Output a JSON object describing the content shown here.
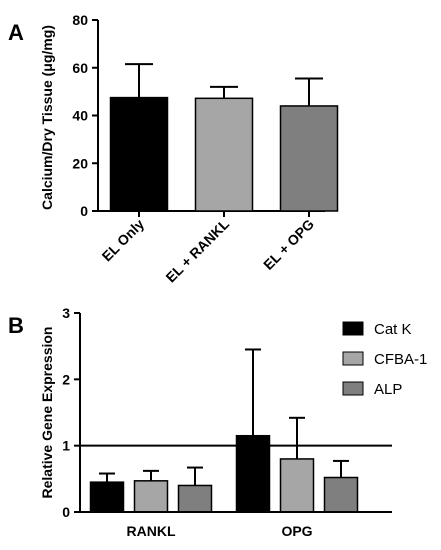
{
  "chart_data": [
    {
      "type": "bar",
      "panel_label": "A",
      "categories": [
        "EL Only",
        "EL + RANKL",
        "EL + OPG"
      ],
      "series": [
        {
          "values": [
            47.5,
            47.2,
            44.0
          ],
          "errors": [
            14.0,
            4.8,
            11.5
          ],
          "colors": [
            "#000000",
            "#a6a6a6",
            "#7f7f7f"
          ]
        }
      ],
      "xlabel": "",
      "ylabel": "Calcium/Dry Tissue (μg/mg)",
      "ylim": [
        0,
        80
      ],
      "yticks": [
        "0",
        "20",
        "40",
        "60",
        "80"
      ],
      "grid": false
    },
    {
      "type": "bar",
      "panel_label": "B",
      "categories": [
        "RANKL",
        "OPG"
      ],
      "series": [
        {
          "name": "Cat K",
          "color": "#000000",
          "values": [
            0.45,
            1.15
          ],
          "errors": [
            0.13,
            1.3
          ]
        },
        {
          "name": "CFBA-1",
          "color": "#a6a6a6",
          "values": [
            0.47,
            0.8
          ],
          "errors": [
            0.15,
            0.62
          ]
        },
        {
          "name": "ALP",
          "color": "#7f7f7f",
          "values": [
            0.4,
            0.52
          ],
          "errors": [
            0.27,
            0.25
          ]
        }
      ],
      "xlabel": "",
      "ylabel": "Relative Gene Expression",
      "ylim": [
        0,
        3
      ],
      "yticks": [
        "0",
        "1",
        "2",
        "3"
      ],
      "reference_line": 1,
      "legend_position": "top-right",
      "grid": false
    }
  ]
}
